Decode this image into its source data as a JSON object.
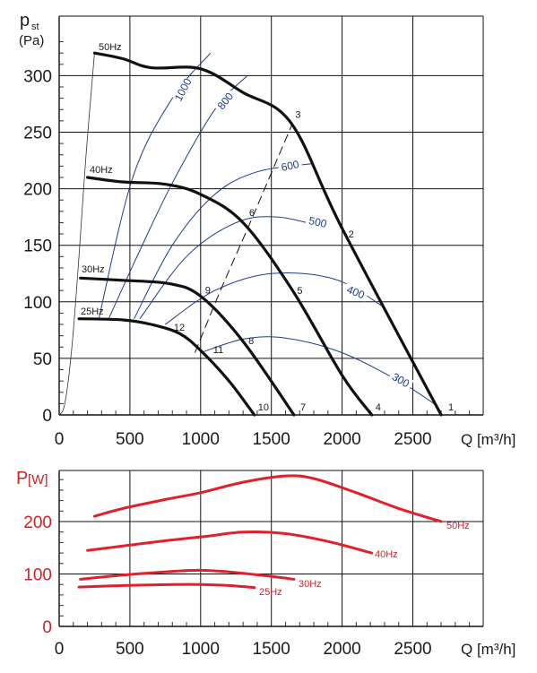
{
  "chart_data": [
    {
      "type": "line",
      "title": "",
      "ylabel_main": "p",
      "ylabel_sub": "st",
      "ylabel_unit": "(Pa)",
      "xlabel": "Q [m³/h]",
      "xlim": [
        0,
        3000
      ],
      "ylim": [
        0,
        340
      ],
      "xticks": [
        "0",
        "500",
        "1000",
        "1500",
        "2000",
        "2500"
      ],
      "yticks": [
        "0",
        "50",
        "100",
        "150",
        "200",
        "250",
        "300"
      ],
      "grid": true,
      "fan_curves": [
        {
          "name": "50Hz",
          "points": [
            [
              250,
              320
            ],
            [
              450,
              315
            ],
            [
              650,
              307
            ],
            [
              1000,
              306
            ],
            [
              1300,
              285
            ],
            [
              1640,
              258
            ],
            [
              2000,
              165
            ],
            [
              2700,
              0
            ]
          ]
        },
        {
          "name": "40Hz",
          "points": [
            [
              200,
              210
            ],
            [
              450,
              206
            ],
            [
              750,
              204
            ],
            [
              1000,
              195
            ],
            [
              1300,
              170
            ],
            [
              1650,
              110
            ],
            [
              2000,
              35
            ],
            [
              2210,
              0
            ]
          ]
        },
        {
          "name": "30Hz",
          "points": [
            [
              150,
              121
            ],
            [
              450,
              119
            ],
            [
              780,
              116
            ],
            [
              1000,
              105
            ],
            [
              1300,
              65
            ],
            [
              1660,
              0
            ]
          ]
        },
        {
          "name": "25Hz",
          "points": [
            [
              140,
              85
            ],
            [
              450,
              84
            ],
            [
              650,
              80
            ],
            [
              850,
              72
            ],
            [
              1000,
              57
            ],
            [
              1200,
              30
            ],
            [
              1380,
              0
            ]
          ]
        }
      ],
      "system_curves": [
        {
          "name": "1000",
          "points": [
            [
              280,
              85
            ],
            [
              520,
              210
            ],
            [
              800,
              280
            ],
            [
              1070,
              320
            ]
          ]
        },
        {
          "name": "800",
          "points": [
            [
              350,
              85
            ],
            [
              550,
              140
            ],
            [
              800,
              205
            ],
            [
              1100,
              270
            ],
            [
              1330,
              300
            ]
          ]
        },
        {
          "name": "600",
          "points": [
            [
              530,
              85
            ],
            [
              800,
              150
            ],
            [
              1100,
              195
            ],
            [
              1400,
              215
            ],
            [
              1780,
              222
            ]
          ]
        },
        {
          "name": "500",
          "points": [
            [
              570,
              85
            ],
            [
              900,
              140
            ],
            [
              1250,
              170
            ],
            [
              1550,
              175
            ],
            [
              1900,
              165
            ]
          ]
        },
        {
          "name": "400",
          "points": [
            [
              750,
              80
            ],
            [
              1100,
              110
            ],
            [
              1500,
              125
            ],
            [
              1950,
              120
            ],
            [
              2300,
              95
            ]
          ]
        },
        {
          "name": "300",
          "points": [
            [
              1000,
              55
            ],
            [
              1300,
              67
            ],
            [
              1600,
              68
            ],
            [
              2000,
              55
            ],
            [
              2400,
              30
            ],
            [
              2650,
              10
            ]
          ]
        }
      ],
      "low_pressure_curve": {
        "points": [
          [
            0,
            0
          ],
          [
            40,
            10
          ],
          [
            90,
            60
          ],
          [
            140,
            140
          ],
          [
            190,
            230
          ],
          [
            250,
            320
          ]
        ]
      },
      "dashed_curve": {
        "points": [
          [
            960,
            55
          ],
          [
            1140,
            110
          ],
          [
            1350,
            170
          ],
          [
            1650,
            258
          ]
        ]
      },
      "operating_points": [
        {
          "label": "1",
          "x": 2700,
          "y": 0
        },
        {
          "label": "2",
          "x": 2000,
          "y": 160
        },
        {
          "label": "3",
          "x": 1650,
          "y": 258
        },
        {
          "label": "4",
          "x": 2210,
          "y": 0
        },
        {
          "label": "5",
          "x": 1650,
          "y": 110
        },
        {
          "label": "6",
          "x": 1330,
          "y": 175
        },
        {
          "label": "7",
          "x": 1660,
          "y": 0
        },
        {
          "label": "8",
          "x": 1300,
          "y": 65
        },
        {
          "label": "9",
          "x": 1000,
          "y": 105
        },
        {
          "label": "10",
          "x": 1380,
          "y": 0
        },
        {
          "label": "11",
          "x": 1000,
          "y": 57
        },
        {
          "label": "12",
          "x": 950,
          "y": 72
        }
      ]
    },
    {
      "type": "line",
      "title": "",
      "ylabel_main": "P",
      "ylabel_unit": "[W]",
      "xlabel": "Q [m³/h]",
      "xlim": [
        0,
        3000
      ],
      "ylim": [
        0,
        300
      ],
      "xticks": [
        "0",
        "500",
        "1000",
        "1500",
        "2000",
        "2500"
      ],
      "yticks": [
        "0",
        "100",
        "200"
      ],
      "grid": true,
      "series": [
        {
          "name": "50Hz",
          "points": [
            [
              250,
              210
            ],
            [
              450,
              225
            ],
            [
              750,
              242
            ],
            [
              1000,
              255
            ],
            [
              1300,
              275
            ],
            [
              1600,
              287
            ],
            [
              1800,
              282
            ],
            [
              2100,
              255
            ],
            [
              2400,
              225
            ],
            [
              2700,
              200
            ]
          ]
        },
        {
          "name": "40Hz",
          "points": [
            [
              200,
              145
            ],
            [
              500,
              155
            ],
            [
              800,
              165
            ],
            [
              1050,
              172
            ],
            [
              1300,
              180
            ],
            [
              1600,
              177
            ],
            [
              1900,
              162
            ],
            [
              2210,
              140
            ]
          ]
        },
        {
          "name": "30Hz",
          "points": [
            [
              150,
              90
            ],
            [
              450,
              98
            ],
            [
              800,
              105
            ],
            [
              1000,
              107
            ],
            [
              1200,
              104
            ],
            [
              1450,
              97
            ],
            [
              1660,
              90
            ]
          ]
        },
        {
          "name": "25Hz",
          "points": [
            [
              140,
              75
            ],
            [
              450,
              78
            ],
            [
              800,
              80
            ],
            [
              1000,
              80
            ],
            [
              1200,
              78
            ],
            [
              1380,
              74
            ]
          ]
        }
      ]
    }
  ]
}
